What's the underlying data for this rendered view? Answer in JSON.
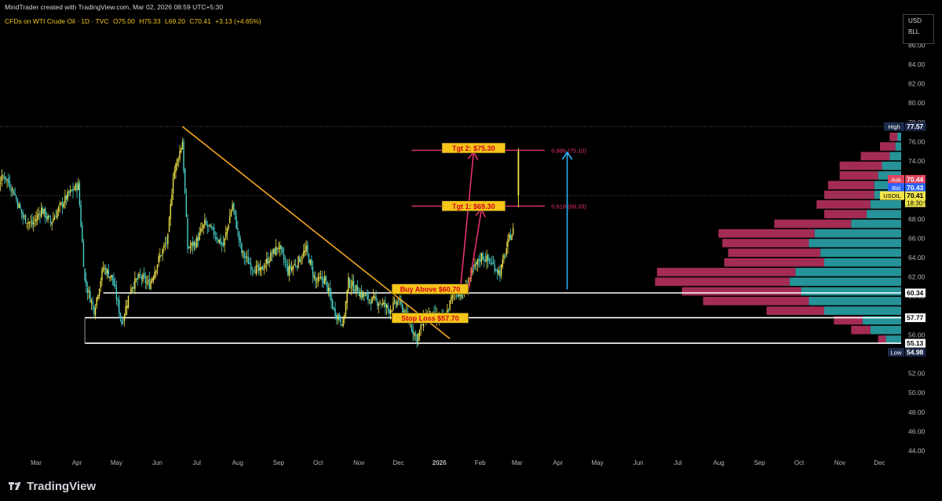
{
  "header": {
    "credit": "MindTrader created with TradingView.com, Mar 02, 2026 08:59 UTC+5:30",
    "symbol": "CFDs on WTI Crude Oil · 1D · TVC",
    "open": "O75.00",
    "high": "H75.33",
    "low": "L69.20",
    "close": "C70.41",
    "change": "+3.13 (+4.65%)"
  },
  "currency_box": {
    "line1": "USD",
    "line2": "BLL"
  },
  "brand": {
    "name": "TradingView"
  },
  "colors": {
    "bull": "#f0e44a",
    "bear": "#4bd0c8",
    "trendline": "#f5a623",
    "target_line": "#e8336b",
    "arrow_blue": "#29b6f6",
    "vp_up": "#2aa3a8",
    "vp_down": "#b6315d",
    "support": "#ffffff",
    "label_bg": "#f5c518",
    "label_text": "#d0021b"
  },
  "chart_data": {
    "type": "candlestick",
    "title": "",
    "xlabel": "",
    "ylabel": "",
    "ylim": [
      43,
      87
    ],
    "y_ticks": [
      44,
      46,
      48,
      50,
      52,
      54,
      56,
      58,
      60,
      62,
      64,
      66,
      68,
      70,
      72,
      74,
      76,
      78,
      80,
      82,
      84,
      86
    ],
    "x_ticks": [
      {
        "label": "Mar",
        "date": "2025-03-01"
      },
      {
        "label": "Apr",
        "date": "2025-04-01"
      },
      {
        "label": "May",
        "date": "2025-05-01"
      },
      {
        "label": "Jun",
        "date": "2025-06-01"
      },
      {
        "label": "Jul",
        "date": "2025-07-01"
      },
      {
        "label": "Aug",
        "date": "2025-08-01"
      },
      {
        "label": "Sep",
        "date": "2025-09-01"
      },
      {
        "label": "Oct",
        "date": "2025-10-01"
      },
      {
        "label": "Nov",
        "date": "2025-11-01"
      },
      {
        "label": "Dec",
        "date": "2025-12-01"
      },
      {
        "label": "2026",
        "date": "2026-01-01"
      },
      {
        "label": "Feb",
        "date": "2026-02-01"
      },
      {
        "label": "Mar",
        "date": "2026-03-01"
      },
      {
        "label": "Apr",
        "date": "2026-04-01"
      },
      {
        "label": "May",
        "date": "2026-05-01"
      },
      {
        "label": "Jun",
        "date": "2026-06-01"
      },
      {
        "label": "Jul",
        "date": "2026-07-01"
      },
      {
        "label": "Aug",
        "date": "2026-08-01"
      },
      {
        "label": "Sep",
        "date": "2026-09-01"
      },
      {
        "label": "Oct",
        "date": "2026-10-01"
      },
      {
        "label": "Nov",
        "date": "2026-11-01"
      },
      {
        "label": "Dec",
        "date": "2026-12-01"
      }
    ],
    "price_path": [
      {
        "date": "2025-01-15",
        "close": 71.0
      },
      {
        "date": "2025-01-22",
        "close": 72.8
      },
      {
        "date": "2025-01-29",
        "close": 71.2
      },
      {
        "date": "2025-02-05",
        "close": 72.5
      },
      {
        "date": "2025-02-12",
        "close": 70.8
      },
      {
        "date": "2025-02-19",
        "close": 68.2
      },
      {
        "date": "2025-02-26",
        "close": 67.4
      },
      {
        "date": "2025-03-05",
        "close": 69.0
      },
      {
        "date": "2025-03-12",
        "close": 67.6
      },
      {
        "date": "2025-03-19",
        "close": 69.2
      },
      {
        "date": "2025-03-26",
        "close": 70.6
      },
      {
        "date": "2025-04-02",
        "close": 71.5
      },
      {
        "date": "2025-04-07",
        "close": 61.5
      },
      {
        "date": "2025-04-14",
        "close": 58.6
      },
      {
        "date": "2025-04-21",
        "close": 63.0
      },
      {
        "date": "2025-04-28",
        "close": 61.8
      },
      {
        "date": "2025-05-05",
        "close": 57.2
      },
      {
        "date": "2025-05-12",
        "close": 61.0
      },
      {
        "date": "2025-05-19",
        "close": 62.0
      },
      {
        "date": "2025-05-26",
        "close": 61.2
      },
      {
        "date": "2025-06-02",
        "close": 63.8
      },
      {
        "date": "2025-06-09",
        "close": 66.0
      },
      {
        "date": "2025-06-13",
        "close": 72.5
      },
      {
        "date": "2025-06-20",
        "close": 76.0
      },
      {
        "date": "2025-06-24",
        "close": 65.0
      },
      {
        "date": "2025-06-30",
        "close": 65.5
      },
      {
        "date": "2025-07-07",
        "close": 67.5
      },
      {
        "date": "2025-07-14",
        "close": 66.5
      },
      {
        "date": "2025-07-21",
        "close": 65.2
      },
      {
        "date": "2025-07-28",
        "close": 69.5
      },
      {
        "date": "2025-08-04",
        "close": 64.5
      },
      {
        "date": "2025-08-11",
        "close": 63.2
      },
      {
        "date": "2025-08-18",
        "close": 62.5
      },
      {
        "date": "2025-08-25",
        "close": 64.0
      },
      {
        "date": "2025-09-01",
        "close": 65.2
      },
      {
        "date": "2025-09-08",
        "close": 62.6
      },
      {
        "date": "2025-09-15",
        "close": 63.5
      },
      {
        "date": "2025-09-22",
        "close": 64.8
      },
      {
        "date": "2025-09-29",
        "close": 61.5
      },
      {
        "date": "2025-10-06",
        "close": 61.8
      },
      {
        "date": "2025-10-13",
        "close": 58.5
      },
      {
        "date": "2025-10-20",
        "close": 57.2
      },
      {
        "date": "2025-10-24",
        "close": 61.5
      },
      {
        "date": "2025-11-03",
        "close": 60.2
      },
      {
        "date": "2025-11-10",
        "close": 59.6
      },
      {
        "date": "2025-11-17",
        "close": 59.4
      },
      {
        "date": "2025-11-24",
        "close": 58.6
      },
      {
        "date": "2025-12-01",
        "close": 59.5
      },
      {
        "date": "2025-12-08",
        "close": 57.6
      },
      {
        "date": "2025-12-15",
        "close": 55.6
      },
      {
        "date": "2025-12-22",
        "close": 58.2
      },
      {
        "date": "2025-12-29",
        "close": 57.8
      },
      {
        "date": "2026-01-05",
        "close": 57.6
      },
      {
        "date": "2026-01-12",
        "close": 60.5
      },
      {
        "date": "2026-01-19",
        "close": 60.2
      },
      {
        "date": "2026-01-26",
        "close": 62.5
      },
      {
        "date": "2026-02-02",
        "close": 64.2
      },
      {
        "date": "2026-02-09",
        "close": 63.5
      },
      {
        "date": "2026-02-16",
        "close": 62.4
      },
      {
        "date": "2026-02-23",
        "close": 66.0
      },
      {
        "date": "2026-02-27",
        "close": 67.0
      }
    ],
    "last_candle": {
      "date": "2026-03-02",
      "open": 75.0,
      "high": 75.33,
      "low": 69.2,
      "close": 70.41
    },
    "trendline": {
      "from": {
        "date": "2025-06-20",
        "price": 77.57
      },
      "to": {
        "date": "2026-01-09",
        "price": 55.6
      }
    },
    "support_levels": [
      {
        "value": 60.34,
        "from": "2025-04-21",
        "label": "60.34"
      },
      {
        "value": 57.77,
        "from": "2025-04-07",
        "label": "57.77"
      },
      {
        "value": 55.13,
        "from": "2025-04-07",
        "label": "55.13"
      }
    ],
    "fib_levels": [
      {
        "value": 75.1,
        "ratio": "0.886",
        "label": "0.886 (75.10)"
      },
      {
        "value": 69.33,
        "ratio": "0.618",
        "label": "0.618 (69.33)"
      }
    ],
    "dotted_levels": [
      77.57,
      70.41
    ],
    "annotations": [
      {
        "text": "Tgt 2: $75.30",
        "date": "2026-01-27",
        "price": 75.3
      },
      {
        "text": "Tgt 1: $69.30",
        "date": "2026-01-27",
        "price": 69.3
      },
      {
        "text": "Buy Above $60.70",
        "date": "2025-12-25",
        "price": 60.7
      },
      {
        "text": "Stop Loss $57.70",
        "date": "2025-12-25",
        "price": 57.7
      }
    ],
    "arrows": [
      {
        "color": "pink",
        "from": {
          "date": "2026-01-17",
          "price": 60.8
        },
        "to": {
          "date": "2026-01-27",
          "price": 74.9
        }
      },
      {
        "color": "pink",
        "from": {
          "date": "2026-01-23",
          "price": 60.6
        },
        "to": {
          "date": "2026-02-02",
          "price": 69.0
        }
      },
      {
        "color": "blue",
        "from": {
          "date": "2026-04-08",
          "price": 60.7
        },
        "to": {
          "date": "2026-04-08",
          "price": 74.9
        }
      }
    ],
    "price_labels": [
      {
        "tag": "High",
        "value": "77.57",
        "price": 77.57
      },
      {
        "tag": "Ask",
        "value": "70.44",
        "price": 72.1
      },
      {
        "tag": "Bid",
        "value": "70.43",
        "price": 71.25
      },
      {
        "tag": "USOIL",
        "value": "70.41",
        "time": "18:30:57",
        "price": 70.41
      },
      {
        "tag": "",
        "value": "60.34",
        "price": 60.34
      },
      {
        "tag": "",
        "value": "57.77",
        "price": 57.77
      },
      {
        "tag": "",
        "value": "55.13",
        "price": 55.13
      },
      {
        "tag": "Low",
        "value": "54.98",
        "price": 54.2
      }
    ],
    "volume_profile": {
      "row_height": 0.95,
      "rows": [
        {
          "price": 76.5,
          "up": 2,
          "down": 4
        },
        {
          "price": 75.5,
          "up": 3,
          "down": 8
        },
        {
          "price": 74.5,
          "up": 6,
          "down": 15
        },
        {
          "price": 73.5,
          "up": 10,
          "down": 22
        },
        {
          "price": 72.5,
          "up": 12,
          "down": 20
        },
        {
          "price": 71.5,
          "up": 14,
          "down": 24
        },
        {
          "price": 70.5,
          "up": 14,
          "down": 26
        },
        {
          "price": 69.5,
          "up": 16,
          "down": 28
        },
        {
          "price": 68.5,
          "up": 18,
          "down": 22
        },
        {
          "price": 67.5,
          "up": 26,
          "down": 40
        },
        {
          "price": 66.5,
          "up": 45,
          "down": 50
        },
        {
          "price": 65.5,
          "up": 48,
          "down": 45
        },
        {
          "price": 64.5,
          "up": 42,
          "down": 48
        },
        {
          "price": 63.5,
          "up": 40,
          "down": 52
        },
        {
          "price": 62.5,
          "up": 55,
          "down": 72
        },
        {
          "price": 61.5,
          "up": 58,
          "down": 70
        },
        {
          "price": 60.5,
          "up": 52,
          "down": 62
        },
        {
          "price": 59.5,
          "up": 48,
          "down": 55
        },
        {
          "price": 58.5,
          "up": 40,
          "down": 30
        },
        {
          "price": 57.5,
          "up": 20,
          "down": 15
        },
        {
          "price": 56.5,
          "up": 16,
          "down": 10
        },
        {
          "price": 55.5,
          "up": 8,
          "down": 4
        }
      ]
    }
  }
}
